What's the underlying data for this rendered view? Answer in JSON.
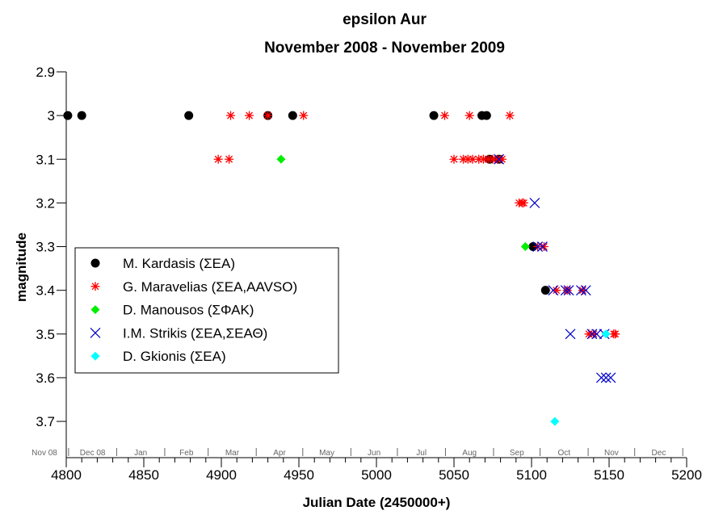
{
  "chart_data": {
    "type": "scatter",
    "title": "epsilon Aur",
    "subtitle": "November 2008 - November 2009",
    "xlabel": "Julian Date (2450000+)",
    "ylabel": "magnitude",
    "xlim": [
      4800,
      5200
    ],
    "ylim": [
      2.9,
      3.783
    ],
    "y_inverted": true,
    "xticks": [
      4800,
      4850,
      4900,
      4950,
      5000,
      5050,
      5100,
      5150,
      5200
    ],
    "yticks": [
      2.9,
      3,
      3.1,
      3.2,
      3.3,
      3.4,
      3.5,
      3.6,
      3.7
    ],
    "ytick_labels": [
      "2.9",
      "3",
      "3.1",
      "3.2",
      "3.3",
      "3.4",
      "3.5",
      "3.6",
      "3.7"
    ],
    "month_axis": {
      "labels": [
        "Nov 08",
        "Dec 08",
        "Jan",
        "Feb",
        "Mar",
        "Apr",
        "May",
        "Jun",
        "Jul",
        "Aug",
        "Sep",
        "Oct",
        "Nov",
        "Dec"
      ],
      "boundaries": [
        4801.5,
        4832.5,
        4863.5,
        4891.5,
        4922.5,
        4952.5,
        4983.5,
        5013.5,
        5044.5,
        5075.5,
        5105.5,
        5136.5,
        5166.5,
        5197.5
      ]
    },
    "legend_position": "middle-left",
    "series": [
      {
        "name": "M. Kardasis (ΣΕΑ)",
        "marker": "circle",
        "color": "#000000",
        "points": [
          [
            4801,
            3.0
          ],
          [
            4810,
            3.0
          ],
          [
            4879,
            3.0
          ],
          [
            4930,
            3.0
          ],
          [
            4946,
            3.0
          ],
          [
            5037,
            3.0
          ],
          [
            5068,
            3.0
          ],
          [
            5071,
            3.0
          ],
          [
            5073,
            3.1
          ],
          [
            5079,
            3.1
          ],
          [
            5101,
            3.3
          ],
          [
            5109,
            3.4
          ]
        ]
      },
      {
        "name": "G. Maravelias (ΣΕΑ,AAVSO)",
        "marker": "asterisk",
        "color": "#ff0000",
        "points": [
          [
            4906,
            3.0
          ],
          [
            4918,
            3.0
          ],
          [
            4930,
            3.0
          ],
          [
            4953,
            3.0
          ],
          [
            5044,
            3.0
          ],
          [
            5060,
            3.0
          ],
          [
            5086,
            3.0
          ],
          [
            4898,
            3.1
          ],
          [
            4905,
            3.1
          ],
          [
            5050,
            3.1
          ],
          [
            5056,
            3.1
          ],
          [
            5059,
            3.1
          ],
          [
            5062,
            3.1
          ],
          [
            5066,
            3.1
          ],
          [
            5069,
            3.1
          ],
          [
            5072,
            3.1
          ],
          [
            5075,
            3.1
          ],
          [
            5078,
            3.1
          ],
          [
            5081,
            3.1
          ],
          [
            5092,
            3.2
          ],
          [
            5094,
            3.2
          ],
          [
            5095,
            3.2
          ],
          [
            5104,
            3.3
          ],
          [
            5108,
            3.3
          ],
          [
            5116,
            3.4
          ],
          [
            5123,
            3.4
          ],
          [
            5133,
            3.4
          ],
          [
            5137,
            3.5
          ],
          [
            5140,
            3.5
          ],
          [
            5153,
            3.5
          ],
          [
            5154,
            3.5
          ]
        ]
      },
      {
        "name": "D. Manousos (ΣΦΑΚ)",
        "marker": "diamond",
        "color": "#00ee00",
        "points": [
          [
            4938.5,
            3.1
          ],
          [
            5096,
            3.3
          ]
        ]
      },
      {
        "name": "I.M. Strikis (ΣΕΑ,ΣΕΑΘ)",
        "marker": "x",
        "color": "#0000cc",
        "points": [
          [
            5079,
            3.1
          ],
          [
            5102,
            3.2
          ],
          [
            5104,
            3.3
          ],
          [
            5107,
            3.3
          ],
          [
            5114,
            3.4
          ],
          [
            5122,
            3.4
          ],
          [
            5124,
            3.4
          ],
          [
            5132,
            3.4
          ],
          [
            5135,
            3.4
          ],
          [
            5125,
            3.5
          ],
          [
            5139,
            3.5
          ],
          [
            5142,
            3.5
          ],
          [
            5147,
            3.5
          ],
          [
            5145,
            3.6
          ],
          [
            5148,
            3.6
          ],
          [
            5151,
            3.6
          ]
        ]
      },
      {
        "name": "D. Gkionis (ΣΕΑ)",
        "marker": "diamond",
        "color": "#00ffff",
        "points": [
          [
            5148,
            3.5
          ],
          [
            5115,
            3.7
          ]
        ]
      }
    ]
  }
}
